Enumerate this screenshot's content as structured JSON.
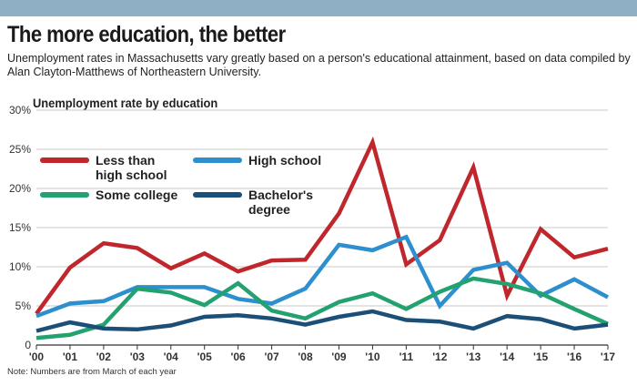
{
  "header": {
    "title": "The more education, the better",
    "subtitle": "Unemployment rates in Massachusetts vary greatly based on a person's educational attainment, based on data compiled by Alan Clayton-Matthews of Northeastern University.",
    "note": "Note: Numbers are from March of each year",
    "bar_color": "#8fb0c4"
  },
  "chart_data": {
    "type": "line",
    "title": "Unemployment rate by education",
    "categories": [
      "'00",
      "'01",
      "'02",
      "'03",
      "'04",
      "'05",
      "'06",
      "'07",
      "'08",
      "'09",
      "'10",
      "'11",
      "'12",
      "'13",
      "'14",
      "'15",
      "'16",
      "'17"
    ],
    "ylim": [
      0,
      30
    ],
    "yticks": [
      0,
      5,
      10,
      15,
      20,
      25,
      30
    ],
    "ytick_labels": [
      "0",
      "5%",
      "10%",
      "15%",
      "20%",
      "25%",
      "30%"
    ],
    "grid": true,
    "legend_position": "top-left",
    "series": [
      {
        "name": "Less than high school",
        "legend_lines": [
          "Less than",
          "high school"
        ],
        "color": "#c0272d",
        "values": [
          4.0,
          9.9,
          13.0,
          12.4,
          9.8,
          11.7,
          9.4,
          10.8,
          10.9,
          16.8,
          25.9,
          10.3,
          13.4,
          22.7,
          6.3,
          14.8,
          11.2,
          12.3
        ]
      },
      {
        "name": "High school",
        "legend_lines": [
          "High school"
        ],
        "color": "#2e8fce",
        "values": [
          3.7,
          5.3,
          5.6,
          7.4,
          7.4,
          7.4,
          5.9,
          5.3,
          7.2,
          12.8,
          12.1,
          13.8,
          5.0,
          9.6,
          10.5,
          6.3,
          8.4,
          6.1
        ]
      },
      {
        "name": "Some college",
        "legend_lines": [
          "Some college"
        ],
        "color": "#23a16f",
        "values": [
          0.9,
          1.3,
          2.6,
          7.2,
          6.7,
          5.1,
          7.9,
          4.4,
          3.4,
          5.5,
          6.6,
          4.6,
          6.8,
          8.5,
          7.8,
          6.6,
          4.6,
          2.7
        ]
      },
      {
        "name": "Bachelor's degree",
        "legend_lines": [
          "Bachelor's",
          "degree"
        ],
        "color": "#1c4f78",
        "values": [
          1.8,
          2.9,
          2.1,
          2.0,
          2.5,
          3.6,
          3.8,
          3.4,
          2.6,
          3.6,
          4.3,
          3.2,
          3.0,
          2.1,
          3.7,
          3.3,
          2.1,
          2.6
        ]
      }
    ]
  }
}
